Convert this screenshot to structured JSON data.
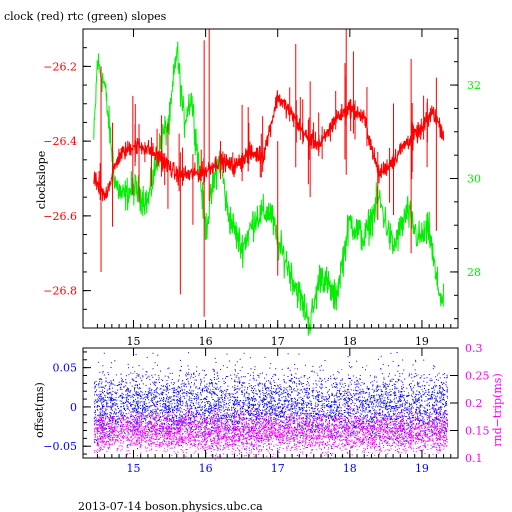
{
  "colors": {
    "clock": "#ff0000",
    "rtc": "#00ee00",
    "offset": "#0000ff",
    "roundtrip": "#ff00ff",
    "axis": "#000000"
  },
  "chart_data": [
    {
      "type": "line",
      "title": "clock (red) rtc (green) slopes",
      "ylabel": "clockslope",
      "y2label": "",
      "xticks": [
        "15",
        "16",
        "17",
        "18",
        "19"
      ],
      "yticks_left": [
        "-26.2",
        "-26.4",
        "-26.6",
        "-26.8"
      ],
      "yticks_right": [
        "32",
        "30",
        "28"
      ],
      "xlim": [
        14.3,
        19.5
      ],
      "ylim": [
        -26.9,
        -26.1
      ],
      "y2lim": [
        26.8,
        33.2
      ],
      "grid": false,
      "series": [
        {
          "name": "clock",
          "axis": "left",
          "x": [
            14.45,
            14.6,
            14.8,
            15.0,
            15.2,
            15.4,
            15.6,
            15.8,
            16.0,
            16.2,
            16.4,
            16.6,
            16.8,
            17.0,
            17.2,
            17.4,
            17.6,
            17.8,
            18.0,
            18.2,
            18.4,
            18.6,
            18.8,
            19.0,
            19.15,
            19.3
          ],
          "values": [
            -26.5,
            -26.55,
            -26.44,
            -26.41,
            -26.42,
            -26.45,
            -26.49,
            -26.49,
            -26.48,
            -26.45,
            -26.47,
            -26.43,
            -26.44,
            -26.28,
            -26.33,
            -26.39,
            -26.41,
            -26.34,
            -26.31,
            -26.34,
            -26.49,
            -26.45,
            -26.4,
            -26.37,
            -26.32,
            -26.38
          ],
          "spikes": [
            {
              "x": 14.55,
              "low": -26.75,
              "high": -26.2
            },
            {
              "x": 15.65,
              "low": -26.81,
              "high": -26.43
            },
            {
              "x": 15.98,
              "low": -26.87,
              "high": -26.13
            },
            {
              "x": 16.05,
              "low": -26.56,
              "high": -26.1
            },
            {
              "x": 17.0,
              "low": -26.76,
              "high": -26.4
            },
            {
              "x": 17.25,
              "low": -26.47,
              "high": -26.14
            },
            {
              "x": 17.45,
              "low": -26.55,
              "high": -26.24
            },
            {
              "x": 17.95,
              "low": -26.49,
              "high": -26.1
            },
            {
              "x": 18.05,
              "low": -26.38,
              "high": -26.16
            },
            {
              "x": 18.85,
              "low": -26.7,
              "high": -26.18
            },
            {
              "x": 19.2,
              "low": -26.64,
              "high": -26.23
            }
          ]
        },
        {
          "name": "rtc",
          "axis": "right",
          "x": [
            14.45,
            14.5,
            14.6,
            14.75,
            14.85,
            15.0,
            15.2,
            15.4,
            15.5,
            15.6,
            15.7,
            15.8,
            15.9,
            16.0,
            16.1,
            16.2,
            16.3,
            16.5,
            16.7,
            16.9,
            17.0,
            17.1,
            17.3,
            17.45,
            17.6,
            17.8,
            18.0,
            18.2,
            18.4,
            18.6,
            18.8,
            18.95,
            19.1,
            19.2,
            19.3
          ],
          "values": [
            30.8,
            32.5,
            32.0,
            29.9,
            29.6,
            29.8,
            29.5,
            30.9,
            31.2,
            32.8,
            31.2,
            31.8,
            30.4,
            28.9,
            29.8,
            30.5,
            29.3,
            28.5,
            29.2,
            29.3,
            28.6,
            28.3,
            27.5,
            26.9,
            28.0,
            27.4,
            29.1,
            28.7,
            29.6,
            28.5,
            29.3,
            28.7,
            28.9,
            27.8,
            27.3
          ]
        }
      ]
    },
    {
      "type": "scatter",
      "ylabel": "offset(ms)",
      "y2label": "rnd−trip(ms)",
      "xticks": [
        "15",
        "16",
        "17",
        "18",
        "19"
      ],
      "yticks_left": [
        "0.05",
        "0",
        "−0.05"
      ],
      "yticks_right": [
        "0.3",
        "0.25",
        "0.2",
        "0.15",
        "0.1"
      ],
      "xlim": [
        14.3,
        19.5
      ],
      "ylim": [
        -0.065,
        0.075
      ],
      "y2lim": [
        0.1,
        0.3
      ],
      "grid": false,
      "series": [
        {
          "name": "offset",
          "axis": "left",
          "x_range": [
            14.45,
            19.35
          ],
          "center": 0.0,
          "spread": 0.022,
          "outlier_max": 0.07
        },
        {
          "name": "rnd-trip",
          "axis": "right",
          "x_range": [
            14.45,
            19.35
          ],
          "center": 0.148,
          "spread": 0.018,
          "outlier_max": 0.27
        }
      ]
    }
  ],
  "footer": "2013-07-14  boson.physics.ubc.ca"
}
